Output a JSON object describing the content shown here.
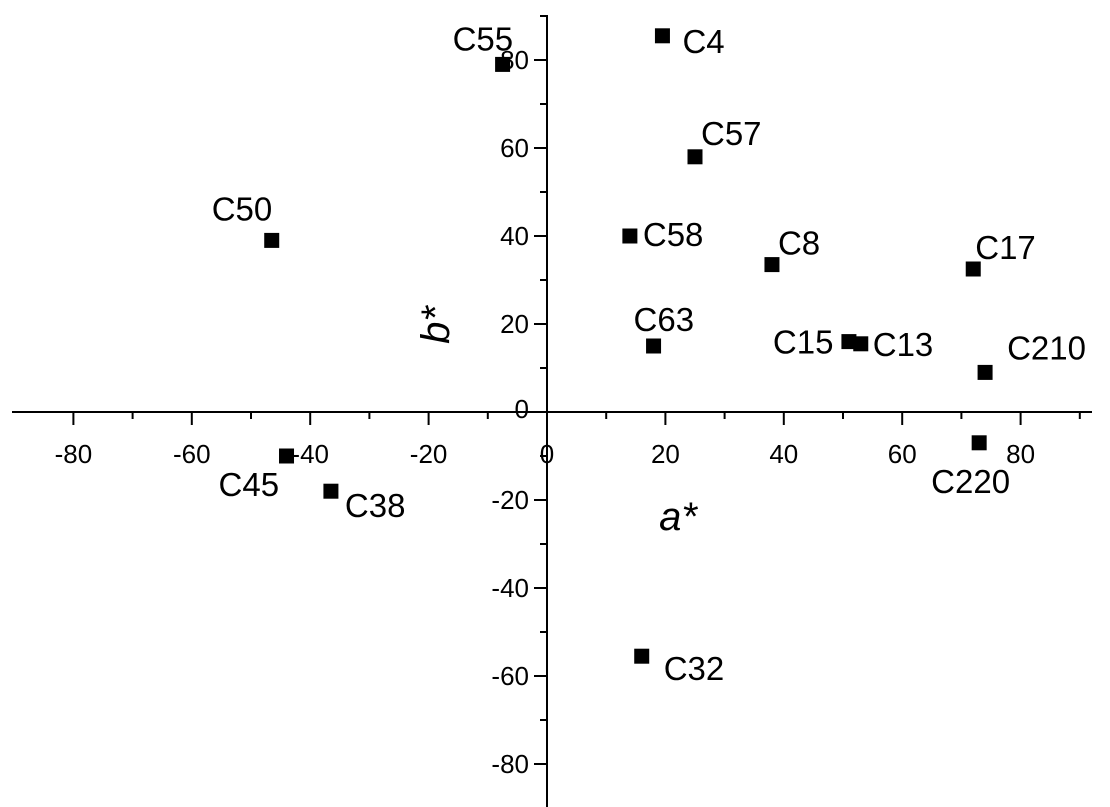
{
  "chart_data": {
    "type": "scatter",
    "xlabel": "a*",
    "ylabel": "b*",
    "xlim": [
      -90,
      90
    ],
    "ylim": [
      -90,
      90
    ],
    "x_ticks": [
      -80,
      -60,
      -40,
      -20,
      0,
      20,
      40,
      60,
      80
    ],
    "y_ticks": [
      -80,
      -60,
      -40,
      -20,
      0,
      20,
      40,
      60,
      80
    ],
    "x_tick_labels": [
      "-80",
      "-60",
      "-40",
      "-20",
      "0",
      "20",
      "40",
      "60",
      "80"
    ],
    "y_tick_labels": [
      "-80",
      "-60",
      "-40",
      "-20",
      "0",
      "20",
      "40",
      "60",
      "80"
    ],
    "grid": false,
    "marker": "square",
    "marker_color": "#000000",
    "points": [
      {
        "label": "C55",
        "x": -7.5,
        "y": 79
      },
      {
        "label": "C4",
        "x": 19.5,
        "y": 85.5
      },
      {
        "label": "C57",
        "x": 25,
        "y": 58
      },
      {
        "label": "C50",
        "x": -46.5,
        "y": 39
      },
      {
        "label": "C58",
        "x": 14,
        "y": 40
      },
      {
        "label": "C8",
        "x": 38,
        "y": 33.5
      },
      {
        "label": "C17",
        "x": 72,
        "y": 32.5
      },
      {
        "label": "C63",
        "x": 18,
        "y": 15
      },
      {
        "label": "C15",
        "x": 51,
        "y": 16
      },
      {
        "label": "C13",
        "x": 53,
        "y": 15.5
      },
      {
        "label": "C210",
        "x": 74,
        "y": 9
      },
      {
        "label": "C220",
        "x": 73,
        "y": -7
      },
      {
        "label": "C45",
        "x": -44,
        "y": -10
      },
      {
        "label": "C38",
        "x": -36.5,
        "y": -18
      },
      {
        "label": "C32",
        "x": 16,
        "y": -55.5
      }
    ]
  }
}
